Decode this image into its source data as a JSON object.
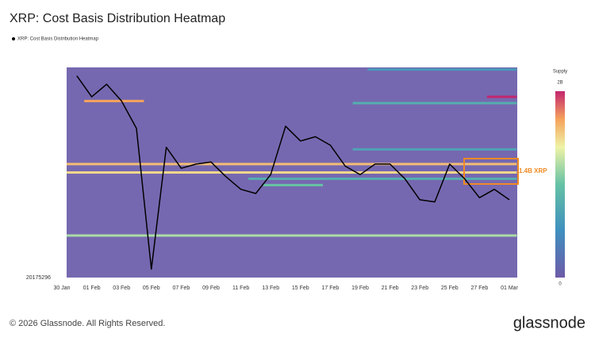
{
  "chart_data": {
    "type": "line",
    "title": "XRP: Cost Basis Distribution Heatmap",
    "x": [
      "31 Jan",
      "01 Feb",
      "02 Feb",
      "03 Feb",
      "04 Feb",
      "05 Feb",
      "06 Feb",
      "07 Feb",
      "08 Feb",
      "09 Feb",
      "10 Feb",
      "11 Feb",
      "12 Feb",
      "13 Feb",
      "14 Feb",
      "15 Feb",
      "16 Feb",
      "17 Feb",
      "18 Feb",
      "19 Feb",
      "20 Feb",
      "21 Feb",
      "22 Feb",
      "23 Feb",
      "24 Feb",
      "25 Feb",
      "26 Feb",
      "27 Feb",
      "28 Feb",
      "01 Mar"
    ],
    "series": [
      {
        "name": "XRP: Cost Basis Distribution Heatmap",
        "color": "#000000",
        "values": [
          20175392,
          20175382,
          20175388,
          20175380,
          20175367,
          20175300,
          20175358,
          20175348,
          20175350,
          20175351,
          20175344,
          20175338,
          20175336,
          20175345,
          20175368,
          20175361,
          20175363,
          20175359,
          20175349,
          20175345,
          20175350,
          20175350,
          20175343,
          20175333,
          20175332,
          20175350,
          20175343,
          20175334,
          20175338,
          20175333
        ]
      }
    ],
    "xlim": [
      "30 Jan",
      "01 Mar"
    ],
    "xticks": [
      "30 Jan",
      "01 Feb",
      "03 Feb",
      "05 Feb",
      "07 Feb",
      "09 Feb",
      "11 Feb",
      "13 Feb",
      "15 Feb",
      "17 Feb",
      "19 Feb",
      "21 Feb",
      "23 Feb",
      "25 Feb",
      "27 Feb",
      "01 Mar"
    ],
    "ylim": [
      20175296,
      20175396
    ],
    "yticks": [
      20175296
    ],
    "heatmap": {
      "colorbar_title": "Supply",
      "clim": [
        0,
        2000000000
      ],
      "cticks": [
        {
          "value": 2000000000,
          "label": "2B"
        },
        0
      ],
      "bands": [
        {
          "level": 20175350,
          "from": "30 Jan",
          "to": "01 Mar",
          "supply": 1600000000
        },
        {
          "level": 20175316,
          "from": "30 Jan",
          "to": "01 Mar",
          "supply": 1200000000
        },
        {
          "level": 20175346,
          "from": "30 Jan",
          "to": "01 Mar",
          "supply": 1500000000
        },
        {
          "level": 20175380,
          "from": "01 Feb",
          "to": "04 Feb",
          "supply": 1700000000
        },
        {
          "level": 20175382,
          "from": "28 Feb",
          "to": "01 Mar",
          "supply": 2000000000
        },
        {
          "level": 20175340,
          "from": "13 Feb",
          "to": "16 Feb",
          "supply": 1000000000
        },
        {
          "level": 20175343,
          "from": "12 Feb",
          "to": "01 Mar",
          "supply": 800000000
        },
        {
          "level": 20175357,
          "from": "19 Feb",
          "to": "01 Mar",
          "supply": 700000000
        },
        {
          "level": 20175379,
          "from": "19 Feb",
          "to": "01 Mar",
          "supply": 800000000
        },
        {
          "level": 20175395,
          "from": "20 Feb",
          "to": "01 Mar",
          "supply": 600000000
        }
      ]
    },
    "annotation": "1.4B XRP"
  },
  "footer": {
    "copyright": "© 2026 Glassnode. All Rights Reserved.",
    "brand": "glassnode"
  }
}
